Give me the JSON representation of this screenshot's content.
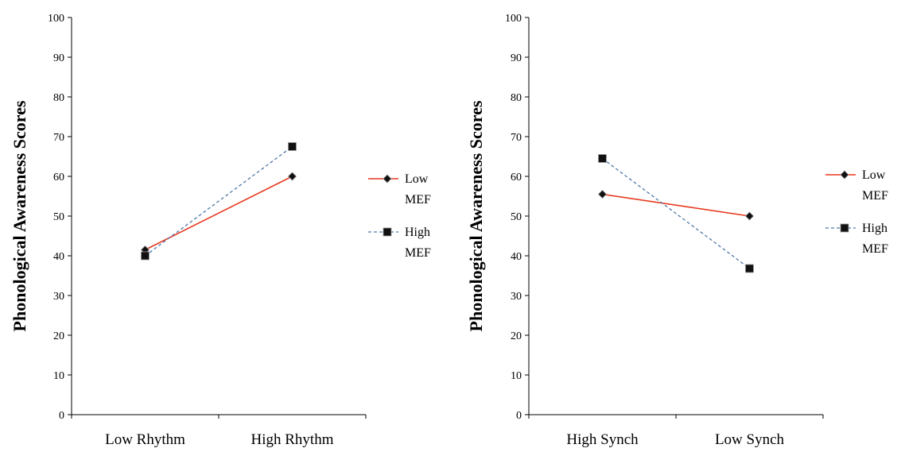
{
  "chart_data": [
    {
      "type": "line",
      "ylabel": "Phonological Awareness Scores",
      "xlabel": "",
      "ylim": [
        0,
        100
      ],
      "yticks": [
        "0",
        "10",
        "20",
        "30",
        "40",
        "50",
        "60",
        "70",
        "80",
        "90",
        "100"
      ],
      "categories": [
        "Low Rhythm",
        "High Rhythm"
      ],
      "legend_position": "right",
      "series": [
        {
          "name_line1": "Low",
          "name_line2": "MEF",
          "values": [
            41.5,
            60
          ],
          "color": "#e8391f",
          "marker": "diamond",
          "dashed": false
        },
        {
          "name_line1": "High",
          "name_line2": "MEF",
          "values": [
            40,
            67.5
          ],
          "color": "#4f79a8",
          "marker": "square",
          "dashed": true
        }
      ]
    },
    {
      "type": "line",
      "ylabel": "Phonological Awareness Scores",
      "xlabel": "",
      "ylim": [
        0,
        100
      ],
      "yticks": [
        "0",
        "10",
        "20",
        "30",
        "40",
        "50",
        "60",
        "70",
        "80",
        "90",
        "100"
      ],
      "categories": [
        "High Synch",
        "Low Synch"
      ],
      "legend_position": "right",
      "series": [
        {
          "name_line1": "Low",
          "name_line2": "MEF",
          "values": [
            55.5,
            50
          ],
          "color": "#e8391f",
          "marker": "diamond",
          "dashed": false
        },
        {
          "name_line1": "High",
          "name_line2": "MEF",
          "values": [
            64.5,
            36.8
          ],
          "color": "#4f79a8",
          "marker": "square",
          "dashed": true
        }
      ]
    }
  ]
}
